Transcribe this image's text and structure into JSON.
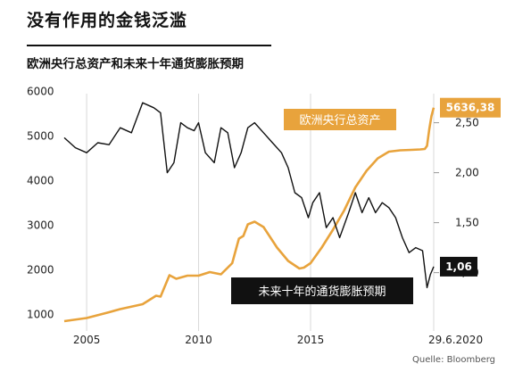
{
  "title": "没有作用的金钱泛滥",
  "subtitle": "欧洲央行总资产和未来十年通货膨胀预期",
  "source": "Quelle: Bloomberg",
  "colors": {
    "assets": "#E8A33C",
    "inflation": "#111111",
    "grid": "#d8d8d8"
  },
  "chart_data": {
    "type": "line",
    "x_ticks": [
      "2005",
      "2010",
      "2015"
    ],
    "x_end_label": "29.6.2020",
    "left_axis": {
      "ticks": [
        "6000",
        "5000",
        "4000",
        "3000",
        "2000",
        "1000"
      ],
      "range": [
        750,
        6150
      ]
    },
    "right_axis": {
      "ticks": [
        "2,50",
        "2,00",
        "1,50",
        "1,00"
      ],
      "range": [
        0.47,
        2.88
      ]
    },
    "series": [
      {
        "name": "欧洲央行总资产",
        "axis": "left",
        "end_value_label": "5636,38",
        "x": [
          2004.0,
          2005.0,
          2006.0,
          2006.5,
          2007.5,
          2008.1,
          2008.3,
          2008.7,
          2009.0,
          2009.5,
          2010.0,
          2010.5,
          2011.0,
          2011.5,
          2011.8,
          2012.0,
          2012.2,
          2012.5,
          2012.9,
          2013.5,
          2014.0,
          2014.5,
          2014.7,
          2015.0,
          2015.5,
          2016.0,
          2016.5,
          2017.0,
          2017.5,
          2018.0,
          2018.5,
          2019.0,
          2019.5,
          2019.9,
          2020.1,
          2020.2,
          2020.3,
          2020.4,
          2020.5
        ],
        "values": [
          850,
          920,
          1050,
          1120,
          1230,
          1420,
          1400,
          1880,
          1800,
          1870,
          1870,
          1950,
          1900,
          2150,
          2700,
          2760,
          3020,
          3080,
          2960,
          2500,
          2200,
          2030,
          2050,
          2150,
          2500,
          2900,
          3330,
          3850,
          4220,
          4500,
          4650,
          4680,
          4690,
          4700,
          4710,
          4780,
          5150,
          5450,
          5636
        ]
      },
      {
        "name": "未来十年的通货膨胀预期",
        "axis": "right",
        "end_value_label": "1,06",
        "x": [
          2004.0,
          2004.5,
          2005.0,
          2005.5,
          2006.0,
          2006.5,
          2007.0,
          2007.5,
          2008.0,
          2008.3,
          2008.6,
          2008.9,
          2009.2,
          2009.5,
          2009.8,
          2010.0,
          2010.3,
          2010.7,
          2011.0,
          2011.3,
          2011.6,
          2011.9,
          2012.2,
          2012.5,
          2012.9,
          2013.3,
          2013.7,
          2014.0,
          2014.3,
          2014.6,
          2014.9,
          2015.1,
          2015.4,
          2015.7,
          2016.0,
          2016.3,
          2016.7,
          2017.0,
          2017.3,
          2017.6,
          2017.9,
          2018.2,
          2018.5,
          2018.8,
          2019.1,
          2019.4,
          2019.7,
          2020.0,
          2020.2,
          2020.35,
          2020.5
        ],
        "values": [
          2.35,
          2.25,
          2.2,
          2.3,
          2.28,
          2.45,
          2.4,
          2.7,
          2.65,
          2.6,
          2.0,
          2.1,
          2.5,
          2.45,
          2.42,
          2.5,
          2.2,
          2.1,
          2.45,
          2.4,
          2.05,
          2.2,
          2.45,
          2.5,
          2.4,
          2.3,
          2.2,
          2.05,
          1.8,
          1.75,
          1.55,
          1.7,
          1.8,
          1.45,
          1.55,
          1.35,
          1.6,
          1.8,
          1.6,
          1.75,
          1.6,
          1.7,
          1.65,
          1.55,
          1.35,
          1.2,
          1.25,
          1.22,
          0.85,
          0.98,
          1.06
        ]
      }
    ],
    "grid": "vertical"
  }
}
